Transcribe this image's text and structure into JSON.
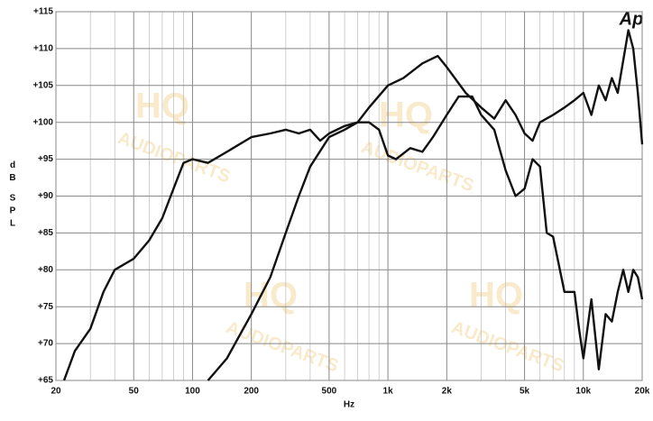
{
  "chart_data": {
    "type": "line",
    "x_label": "Hz",
    "y_label": "dB SPL",
    "logo": "Ap",
    "watermark": [
      "HQ",
      "AUDIOPARTS"
    ],
    "xscale": "log",
    "grid": true,
    "color": "#111111",
    "xlim": [
      20,
      20000
    ],
    "ylim": [
      65,
      115
    ],
    "xticks": [
      20,
      50,
      100,
      200,
      500,
      {
        "value": 1000,
        "label": "1k"
      },
      {
        "value": 2000,
        "label": "2k"
      },
      {
        "value": 5000,
        "label": "5k"
      },
      {
        "value": 10000,
        "label": "10k"
      },
      {
        "value": 20000,
        "label": "20k"
      }
    ],
    "x_minor_ticks": [
      30,
      40,
      60,
      70,
      80,
      90,
      300,
      400,
      600,
      700,
      800,
      900,
      3000,
      4000,
      6000,
      7000,
      8000,
      9000
    ],
    "yticks": [
      {
        "value": 65,
        "label": "+65"
      },
      {
        "value": 70,
        "label": "+70"
      },
      {
        "value": 75,
        "label": "+75"
      },
      {
        "value": 80,
        "label": "+80"
      },
      {
        "value": 85,
        "label": "+85"
      },
      {
        "value": 90,
        "label": "+90"
      },
      {
        "value": 95,
        "label": "+95"
      },
      {
        "value": 100,
        "label": "+100"
      },
      {
        "value": 105,
        "label": "+105"
      },
      {
        "value": 110,
        "label": "+110"
      },
      {
        "value": 115,
        "label": "+115"
      }
    ],
    "series": [
      {
        "color": "#111111",
        "x": [
          22,
          25,
          30,
          35,
          40,
          50,
          60,
          70,
          80,
          90,
          100,
          120,
          150,
          200,
          250,
          300,
          350,
          400,
          450,
          500,
          600,
          700,
          800,
          900,
          1000,
          1100,
          1300,
          1500,
          1700,
          2000,
          2300,
          2700,
          3000,
          3500,
          4000,
          4500,
          5000,
          5500,
          6000,
          6500,
          7000,
          8000,
          9000,
          9500,
          10000,
          11000,
          12000,
          13000,
          14000,
          15000,
          16000,
          17000,
          18000,
          19000,
          20000
        ],
        "values": [
          65,
          69,
          72,
          77,
          80,
          81.5,
          84,
          87,
          91,
          94.5,
          95,
          94.5,
          96,
          98,
          98.5,
          99,
          98.5,
          99,
          97.5,
          98.5,
          99.5,
          100,
          100,
          99,
          95.5,
          95,
          96.5,
          96,
          98,
          101,
          103.5,
          103.5,
          101,
          99,
          93.5,
          90,
          91,
          95,
          94,
          85,
          84.5,
          77,
          77,
          72,
          68,
          76,
          66.5,
          74,
          73,
          77,
          80,
          77,
          80,
          79,
          76
        ]
      },
      {
        "color": "#111111",
        "x": [
          120,
          150,
          200,
          250,
          300,
          350,
          400,
          500,
          600,
          700,
          800,
          1000,
          1200,
          1500,
          1800,
          2000,
          2500,
          3000,
          3500,
          4000,
          4500,
          5000,
          5500,
          6000,
          7000,
          8000,
          9000,
          10000,
          11000,
          12000,
          13000,
          14000,
          15000,
          17000,
          18000,
          19000,
          20000
        ],
        "values": [
          65,
          68,
          74,
          79,
          85,
          90,
          94,
          98,
          99,
          100,
          102,
          105,
          106,
          108,
          109,
          107.5,
          104,
          102,
          100.5,
          103,
          101,
          98.5,
          97.5,
          100,
          101,
          102,
          103,
          104,
          101,
          105,
          103,
          106,
          104,
          112.5,
          110,
          104,
          97
        ]
      }
    ]
  }
}
